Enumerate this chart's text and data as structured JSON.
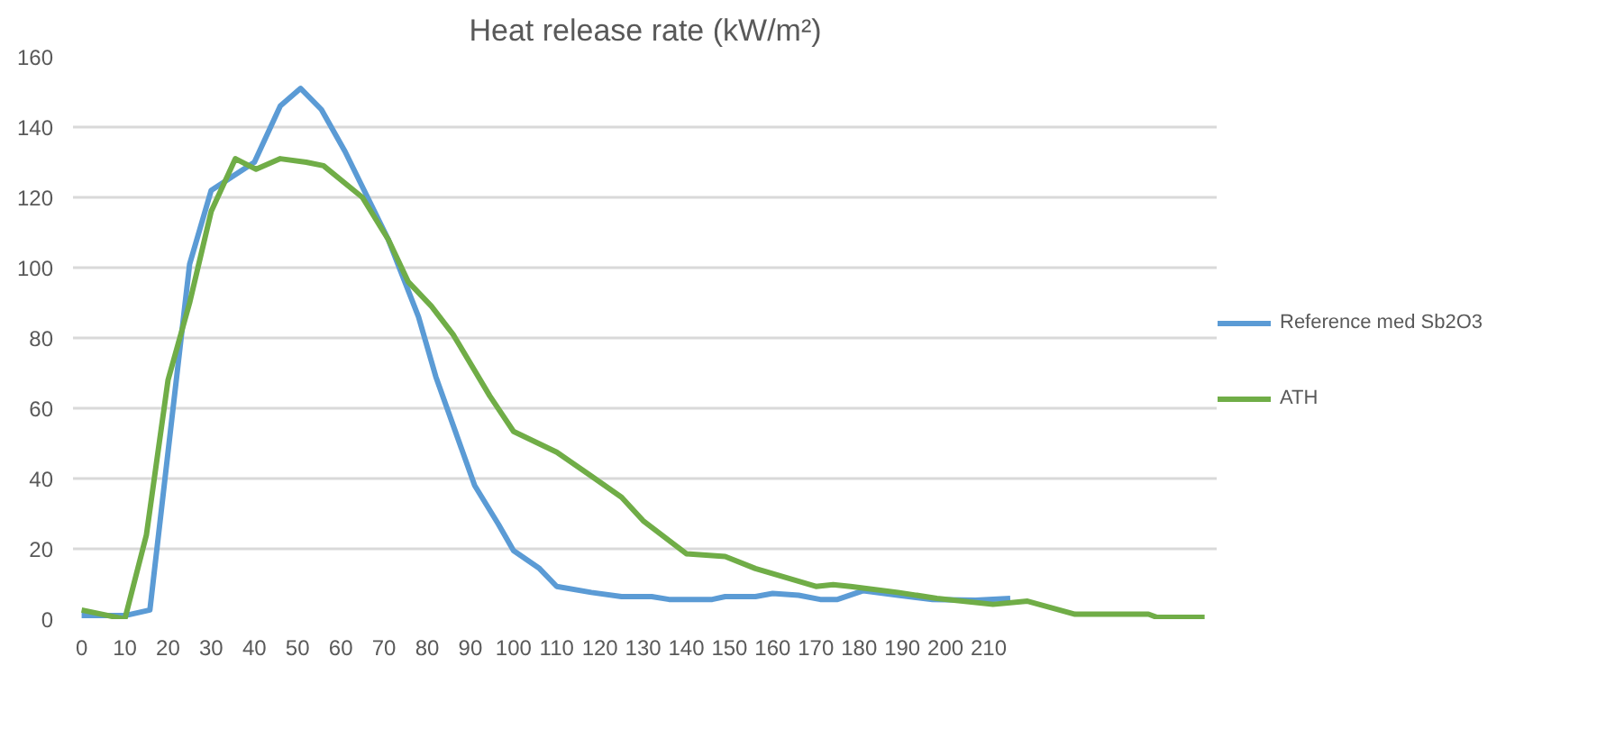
{
  "chart_data": {
    "type": "line",
    "title": "Heat release rate (kW/m²)",
    "xlim": [
      -2,
      263
    ],
    "xticks": [
      0,
      10,
      20,
      30,
      40,
      50,
      60,
      70,
      80,
      90,
      100,
      110,
      120,
      130,
      140,
      150,
      160,
      170,
      180,
      190,
      200,
      210
    ],
    "ylim": [
      0,
      160
    ],
    "yticks": [
      0,
      20,
      40,
      60,
      80,
      100,
      120,
      140,
      160
    ],
    "grid": "y",
    "legend": "right",
    "marker": "none",
    "line_style": "solid",
    "series": [
      {
        "name": "Reference med Sb2O3",
        "color": "#5b9bd5",
        "x": [
          0,
          10,
          15.8,
          25,
          30,
          40,
          46,
          50.7,
          55.5,
          61,
          71,
          78,
          82,
          91,
          96.5,
          100,
          106,
          110,
          118,
          125,
          132,
          136,
          146,
          149,
          156,
          160,
          166,
          171,
          175,
          181,
          189,
          197,
          207,
          215
        ],
        "values": [
          1,
          1,
          2.6,
          101,
          122,
          130,
          146,
          151,
          145,
          133,
          108,
          86,
          69,
          38,
          27,
          19.5,
          14.4,
          9.3,
          7.6,
          6.4,
          6.4,
          5.6,
          5.6,
          6.4,
          6.4,
          7.3,
          6.8,
          5.6,
          5.6,
          8.1,
          6.8,
          5.6,
          5.4,
          5.9
        ]
      },
      {
        "name": "ATH",
        "color": "#70ad47",
        "x": [
          0,
          10,
          15,
          20,
          25,
          30,
          35.6,
          40.4,
          46,
          52,
          56,
          65,
          71,
          75.6,
          81,
          86,
          94.5,
          100,
          110,
          118,
          125,
          130,
          140,
          149,
          156,
          170,
          174,
          178,
          189,
          198,
          211,
          219,
          230,
          247,
          249,
          260
        ],
        "values": [
          2.6,
          0,
          24,
          68,
          90,
          116,
          131,
          128,
          131,
          130,
          129,
          120,
          108,
          96,
          89,
          81,
          63.5,
          53.4,
          47.5,
          40.7,
          34.7,
          28,
          18.6,
          17.8,
          14.4,
          9.3,
          9.8,
          9.3,
          7.6,
          5.9,
          4.2,
          5.1,
          1.4,
          1.4,
          0.5,
          0.5
        ]
      }
    ]
  }
}
